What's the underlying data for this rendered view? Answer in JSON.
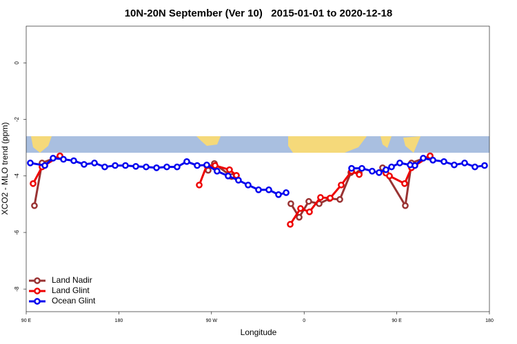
{
  "chart_data": {
    "type": "line",
    "title": "10N-20N September (Ver 10)   2015-01-01 to 2020-12-18",
    "x_label": "Longitude",
    "y_label": "XCO2 - MLO trend (ppm)",
    "xlim": [
      90,
      540
    ],
    "xticks": [
      {
        "value": 90,
        "label": "90 E"
      },
      180,
      {
        "value": 270,
        "label": "90 W"
      },
      {
        "value": 360,
        "label": "0"
      },
      {
        "value": 450,
        "label": "90 E"
      },
      {
        "value": 540,
        "label": "180"
      }
    ],
    "ylim": [
      -8.8,
      1.3
    ],
    "yticks": [
      -8,
      -6,
      -4,
      -2,
      0
    ],
    "legend": "bottom-left",
    "series": [
      {
        "name": "Land Nadir",
        "color": "#993333",
        "x": [
          98.0,
          105.4,
          122.8,
          null,
          266.8,
          272.8,
          289.5,
          294.2,
          null,
          347.1,
          355.2,
          364.5,
          374.6,
          384.7,
          394.7,
          405.4,
          413.5,
          null,
          436.2,
          458.3,
          464.3,
          482.4
        ],
        "values": [
          -5.05,
          -3.54,
          -3.29,
          null,
          -3.8,
          -3.56,
          -4.02,
          -3.98,
          null,
          -4.98,
          -5.46,
          -4.9,
          -4.98,
          -4.8,
          -4.83,
          -3.88,
          -3.9,
          null,
          -3.71,
          -5.05,
          -3.54,
          -3.29
        ]
      },
      {
        "name": "Land Glint",
        "color": "#ee0000",
        "x": [
          96.7,
          105.4,
          122.8,
          null,
          258.1,
          265.4,
          273.5,
          287.5,
          294.2,
          null,
          346.5,
          356.5,
          365.2,
          375.9,
          385.3,
          396.0,
          406.1,
          413.5,
          null,
          439.5,
          442.9,
          457.6,
          464.3,
          482.4
        ],
        "values": [
          -4.27,
          -3.68,
          -3.29,
          null,
          -4.32,
          -3.63,
          -3.63,
          -3.78,
          -3.98,
          null,
          -5.71,
          -5.15,
          -5.27,
          -4.76,
          -4.78,
          -4.32,
          -3.83,
          -3.95,
          null,
          -3.9,
          -4.0,
          -4.27,
          -3.71,
          -3.29
        ]
      },
      {
        "name": "Ocean Glint",
        "color": "#0000ee",
        "x": [
          94.0,
          108.1,
          116.1,
          126.2,
          136.2,
          146.2,
          156.3,
          166.3,
          176.4,
          186.4,
          196.5,
          206.5,
          216.6,
          226.6,
          236.6,
          246.0,
          256.1,
          265.4,
          275.4,
          286.2,
          296.2,
          305.6,
          315.7,
          325.7,
          335.1,
          342.5,
          null,
          406.1,
          416.1,
          426.1,
          432.8,
          439.5,
          444.9,
          452.9,
          463.0,
          467.6,
          475.7,
          485.1,
          495.8,
          505.8,
          515.9,
          525.9,
          535.3
        ],
        "values": [
          -3.54,
          -3.63,
          -3.37,
          -3.41,
          -3.46,
          -3.59,
          -3.54,
          -3.68,
          -3.63,
          -3.63,
          -3.66,
          -3.68,
          -3.71,
          -3.68,
          -3.68,
          -3.49,
          -3.63,
          -3.61,
          -3.83,
          -4.0,
          -4.15,
          -4.32,
          -4.49,
          -4.49,
          -4.66,
          -4.59,
          null,
          -3.73,
          -3.73,
          -3.83,
          -3.88,
          -3.78,
          -3.68,
          -3.54,
          -3.61,
          -3.63,
          -3.37,
          -3.44,
          -3.49,
          -3.61,
          -3.54,
          -3.68,
          -3.63
        ]
      }
    ]
  }
}
